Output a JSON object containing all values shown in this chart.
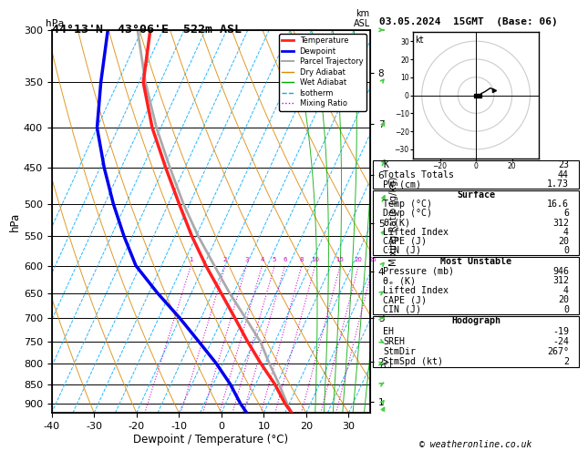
{
  "title_left": "44°13'N  43°06'E  522m ASL",
  "title_date": "03.05.2024  15GMT  (Base: 06)",
  "xlabel": "Dewpoint / Temperature (°C)",
  "ylabel_left": "hPa",
  "pressure_levels": [
    300,
    350,
    400,
    450,
    500,
    550,
    600,
    650,
    700,
    750,
    800,
    850,
    900
  ],
  "pressure_min": 300,
  "pressure_max": 925,
  "temp_min": -40,
  "temp_max": 35,
  "temp_profile_p": [
    925,
    900,
    850,
    800,
    750,
    700,
    650,
    600,
    550,
    500,
    450,
    400,
    350,
    300
  ],
  "temp_profile_t": [
    16.6,
    14.0,
    9.5,
    4.0,
    -1.5,
    -7.0,
    -13.0,
    -19.5,
    -26.0,
    -32.5,
    -39.5,
    -47.0,
    -54.0,
    -58.0
  ],
  "dewp_profile_p": [
    925,
    900,
    850,
    800,
    750,
    700,
    650,
    600,
    550,
    500,
    450,
    400,
    350,
    300
  ],
  "dewp_profile_t": [
    6.0,
    3.5,
    -1.0,
    -6.5,
    -13.0,
    -20.0,
    -28.0,
    -36.0,
    -42.0,
    -48.0,
    -54.0,
    -60.0,
    -64.0,
    -68.0
  ],
  "parcel_profile_p": [
    925,
    900,
    850,
    800,
    750,
    700,
    650,
    600,
    550,
    500,
    450,
    400,
    350,
    300
  ],
  "parcel_profile_t": [
    16.6,
    14.5,
    10.5,
    6.0,
    1.5,
    -4.5,
    -11.0,
    -17.5,
    -24.5,
    -31.5,
    -38.5,
    -46.0,
    -53.5,
    -61.0
  ],
  "color_temp": "#ff2020",
  "color_dewp": "#0000ee",
  "color_parcel": "#aaaaaa",
  "color_dry_adiabat": "#dd8800",
  "color_wet_adiabat": "#00aa00",
  "color_isotherm": "#00aaff",
  "color_mixing": "#cc00cc",
  "mixing_ratios": [
    1,
    2,
    3,
    4,
    5,
    6,
    8,
    10,
    15,
    20,
    25
  ],
  "mixing_ratio_labels": [
    1,
    2,
    3,
    4,
    5,
    6,
    8,
    10,
    15,
    20,
    25
  ],
  "lcl_pressure": 805,
  "km_labels": [
    1,
    2,
    3,
    4,
    5,
    6,
    7,
    8
  ],
  "km_pressures": [
    895,
    795,
    700,
    610,
    530,
    460,
    395,
    340
  ],
  "wind_barb_p": [
    300,
    350,
    400,
    450,
    500,
    550,
    600,
    650,
    700,
    750,
    800,
    850,
    900,
    925
  ],
  "wind_barb_dir": [
    270,
    260,
    255,
    250,
    250,
    255,
    260,
    265,
    270,
    275,
    270,
    265,
    260,
    255
  ],
  "wind_barb_spd": [
    15,
    12,
    10,
    8,
    6,
    5,
    4,
    4,
    5,
    5,
    4,
    4,
    5,
    5
  ],
  "stats": {
    "K": 23,
    "Totals Totals": 44,
    "PW (cm)": 1.73,
    "Temp (C)": 16.6,
    "Dewp (C)": 6,
    "theta_e_K": 312,
    "Lifted Index": 4,
    "CAPE (J)": 20,
    "CIN (J)": 0,
    "MU_Pressure_mb": 946,
    "MU_theta_e_K": 312,
    "MU_Lifted_Index": 4,
    "MU_CAPE_J": 20,
    "MU_CIN_J": 0,
    "EH": -19,
    "SREH": -24,
    "StmDir": 267,
    "StmSpd_kt": 2
  },
  "copyright": "© weatheronline.co.uk"
}
